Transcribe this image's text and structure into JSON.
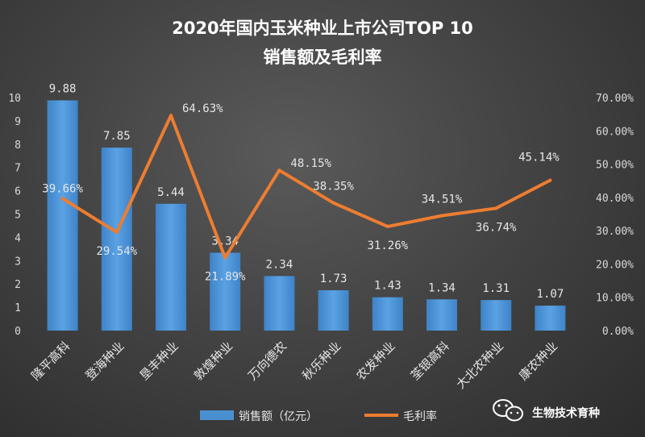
{
  "chart_data": {
    "type": "bar",
    "title": "2020年国内玉米种业上市公司TOP 10",
    "subtitle": "销售额及毛利率",
    "categories": [
      "隆平高科",
      "登海种业",
      "垦丰种业",
      "敦煌种业",
      "万向德农",
      "秋乐种业",
      "农发种业",
      "荃银高科",
      "大北农种业",
      "康农种业"
    ],
    "series": [
      {
        "name": "销售额（亿元）",
        "type": "bar",
        "axis": "left",
        "color": "#4a90d0",
        "values": [
          9.88,
          7.85,
          5.44,
          3.34,
          2.34,
          1.73,
          1.43,
          1.34,
          1.31,
          1.07
        ],
        "labels": [
          "9.88",
          "7.85",
          "5.44",
          "3.34",
          "2.34",
          "1.73",
          "1.43",
          "1.34",
          "1.31",
          "1.07"
        ]
      },
      {
        "name": "毛利率",
        "type": "line",
        "axis": "right",
        "color": "#ed7d31",
        "values": [
          39.66,
          29.54,
          64.63,
          21.89,
          48.15,
          38.35,
          31.26,
          34.51,
          36.74,
          45.14
        ],
        "labels": [
          "39.66%",
          "29.54%",
          "64.63%",
          "21.89%",
          "48.15%",
          "38.35%",
          "31.26%",
          "34.51%",
          "36.74%",
          "45.14%"
        ]
      }
    ],
    "ylim_left": [
      0,
      10
    ],
    "yticks_left": [
      "0",
      "1",
      "2",
      "3",
      "4",
      "5",
      "6",
      "7",
      "8",
      "9",
      "10"
    ],
    "ylim_right": [
      0,
      70
    ],
    "yticks_right": [
      "0.00%",
      "10.00%",
      "20.00%",
      "30.00%",
      "40.00%",
      "50.00%",
      "60.00%",
      "70.00%"
    ],
    "grid": false,
    "legend": "bottom"
  },
  "watermark": {
    "text": "生物技术育种",
    "icon": "wechat-icon"
  }
}
